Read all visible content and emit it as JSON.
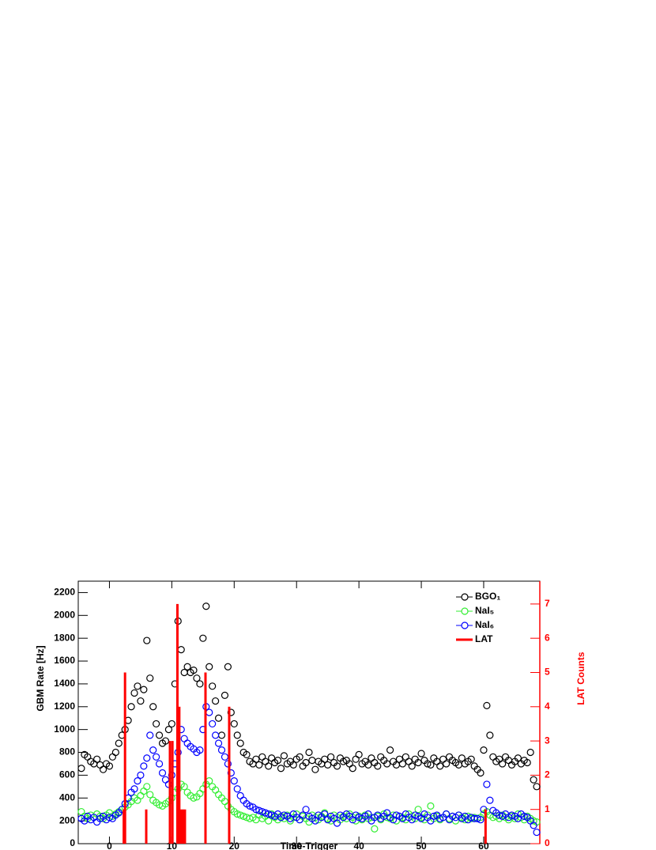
{
  "chart_data": {
    "type": "scatter",
    "xlabel": "Time-Trigger",
    "ylabel": "GBM Rate [Hz]",
    "y2label": "LAT Counts",
    "xlim": [
      -5,
      69
    ],
    "ylim": [
      0,
      2300
    ],
    "y2lim": [
      0,
      7.667
    ],
    "xticks": [
      0,
      10,
      20,
      30,
      40,
      50,
      60
    ],
    "yticks": [
      0,
      200,
      400,
      600,
      800,
      1000,
      1200,
      1400,
      1600,
      1800,
      2000,
      2200
    ],
    "y2ticks": [
      0,
      1,
      2,
      3,
      4,
      5,
      6,
      7
    ],
    "y2color": "#ff0000",
    "x": [
      -4.5,
      -4,
      -3.5,
      -3,
      -2.5,
      -2,
      -1.5,
      -1,
      -0.5,
      0,
      0.5,
      1,
      1.5,
      2,
      2.5,
      3,
      3.5,
      4,
      4.5,
      5,
      5.5,
      6,
      6.5,
      7,
      7.5,
      8,
      8.5,
      9,
      9.5,
      10,
      10.5,
      11,
      11.5,
      12,
      12.5,
      13,
      13.5,
      14,
      14.5,
      15,
      15.5,
      16,
      16.5,
      17,
      17.5,
      18,
      18.5,
      19,
      19.5,
      20,
      20.5,
      21,
      21.5,
      22,
      22.5,
      23,
      23.5,
      24,
      24.5,
      25,
      25.5,
      26,
      26.5,
      27,
      27.5,
      28,
      28.5,
      29,
      29.5,
      30,
      30.5,
      31,
      31.5,
      32,
      32.5,
      33,
      33.5,
      34,
      34.5,
      35,
      35.5,
      36,
      36.5,
      37,
      37.5,
      38,
      38.5,
      39,
      39.5,
      40,
      40.5,
      41,
      41.5,
      42,
      42.5,
      43,
      43.5,
      44,
      44.5,
      45,
      45.5,
      46,
      46.5,
      47,
      47.5,
      48,
      48.5,
      49,
      49.5,
      50,
      50.5,
      51,
      51.5,
      52,
      52.5,
      53,
      53.5,
      54,
      54.5,
      55,
      55.5,
      56,
      56.5,
      57,
      57.5,
      58,
      58.5,
      59,
      59.5,
      60,
      60.5,
      61,
      61.5,
      62,
      62.5,
      63,
      63.5,
      64,
      64.5,
      65,
      65.5,
      66,
      66.5,
      67,
      67.5,
      68,
      68.5
    ],
    "series": [
      {
        "name": "BGO₁",
        "color": "#000000",
        "type": "scatter",
        "values": [
          660,
          780,
          760,
          720,
          700,
          740,
          690,
          650,
          700,
          680,
          760,
          800,
          880,
          950,
          1000,
          1080,
          1200,
          1320,
          1380,
          1250,
          1350,
          1780,
          1450,
          1200,
          1050,
          950,
          880,
          900,
          1000,
          1050,
          1400,
          1950,
          1700,
          1500,
          1550,
          1500,
          1520,
          1450,
          1400,
          1800,
          2080,
          1550,
          1380,
          1250,
          1100,
          950,
          1300,
          1550,
          1150,
          1050,
          950,
          880,
          800,
          780,
          720,
          700,
          740,
          690,
          760,
          720,
          680,
          750,
          710,
          730,
          660,
          770,
          700,
          720,
          690,
          740,
          760,
          680,
          710,
          800,
          730,
          650,
          720,
          700,
          740,
          690,
          760,
          710,
          680,
          750,
          720,
          730,
          700,
          660,
          740,
          780,
          700,
          720,
          690,
          750,
          710,
          680,
          760,
          730,
          700,
          820,
          720,
          690,
          740,
          700,
          760,
          720,
          680,
          740,
          710,
          790,
          730,
          700,
          690,
          750,
          720,
          680,
          740,
          700,
          760,
          730,
          710,
          690,
          750,
          700,
          720,
          740,
          680,
          650,
          620,
          820,
          1210,
          950,
          760,
          720,
          740,
          700,
          760,
          730,
          690,
          720,
          750,
          700,
          730,
          710,
          800,
          560,
          500
        ]
      },
      {
        "name": "NaI₅",
        "color": "#33ee33",
        "type": "scatter",
        "values": [
          280,
          240,
          220,
          250,
          230,
          260,
          240,
          220,
          250,
          270,
          240,
          260,
          280,
          300,
          320,
          340,
          370,
          400,
          380,
          420,
          460,
          500,
          430,
          380,
          360,
          340,
          330,
          350,
          370,
          400,
          450,
          480,
          520,
          500,
          450,
          420,
          400,
          410,
          440,
          480,
          520,
          550,
          500,
          470,
          430,
          400,
          370,
          330,
          300,
          280,
          260,
          250,
          240,
          230,
          220,
          230,
          210,
          250,
          220,
          240,
          200,
          260,
          230,
          210,
          240,
          220,
          250,
          200,
          230,
          260,
          210,
          240,
          220,
          190,
          250,
          230,
          210,
          240,
          270,
          220,
          200,
          250,
          230,
          210,
          240,
          220,
          260,
          230,
          200,
          240,
          210,
          250,
          220,
          230,
          130,
          240,
          210,
          260,
          230,
          220,
          250,
          200,
          240,
          230,
          210,
          260,
          240,
          220,
          300,
          230,
          210,
          250,
          330,
          220,
          240,
          210,
          230,
          260,
          220,
          240,
          200,
          250,
          230,
          210,
          240,
          220,
          230,
          220,
          230,
          260,
          280,
          250,
          230,
          240,
          220,
          250,
          230,
          210,
          240,
          220,
          260,
          230,
          210,
          240,
          220,
          200,
          190
        ]
      },
      {
        "name": "NaI₆",
        "color": "#0000ff",
        "type": "scatter",
        "values": [
          220,
          200,
          240,
          210,
          230,
          190,
          220,
          240,
          210,
          230,
          220,
          250,
          270,
          300,
          350,
          400,
          450,
          480,
          550,
          600,
          680,
          750,
          950,
          820,
          760,
          700,
          620,
          560,
          520,
          600,
          700,
          800,
          1000,
          920,
          880,
          850,
          830,
          800,
          820,
          1000,
          1200,
          1150,
          1050,
          950,
          880,
          820,
          760,
          700,
          620,
          550,
          480,
          420,
          380,
          350,
          330,
          320,
          300,
          290,
          280,
          270,
          260,
          250,
          240,
          260,
          230,
          250,
          240,
          220,
          260,
          230,
          210,
          250,
          300,
          240,
          220,
          200,
          250,
          230,
          260,
          210,
          240,
          220,
          180,
          250,
          230,
          260,
          240,
          210,
          250,
          230,
          220,
          240,
          260,
          200,
          230,
          250,
          220,
          240,
          270,
          230,
          210,
          250,
          240,
          220,
          260,
          230,
          210,
          250,
          240,
          220,
          260,
          230,
          200,
          240,
          250,
          220,
          230,
          260,
          210,
          240,
          230,
          250,
          220,
          240,
          210,
          230,
          220,
          220,
          210,
          300,
          520,
          380,
          290,
          270,
          250,
          240,
          260,
          230,
          250,
          240,
          220,
          260,
          240,
          230,
          200,
          160,
          100
        ]
      },
      {
        "name": "LAT",
        "color": "#ff0000",
        "type": "bar",
        "axis": "y2",
        "x": [
          2.3,
          2.5,
          5.9,
          9.7,
          10.1,
          10.9,
          11.2,
          11.5,
          11.8,
          12.1,
          15.4,
          19.2,
          60.3
        ],
        "values": [
          1,
          5,
          1,
          3,
          3,
          7,
          4,
          1,
          1,
          1,
          5,
          4,
          1
        ]
      }
    ]
  }
}
